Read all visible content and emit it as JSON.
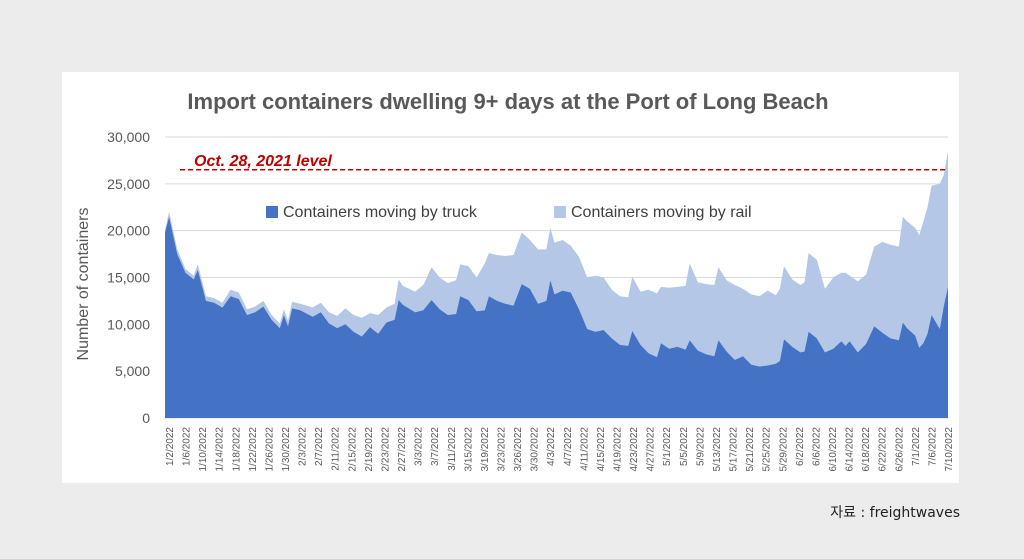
{
  "source_label": "자료 : freightwaves",
  "chart_data": {
    "type": "area",
    "stacked": true,
    "title": "Import containers dwelling 9+ days at the Port of Long Beach",
    "xlabel": "",
    "ylabel": "Number of containers",
    "ylim": [
      0,
      30000
    ],
    "yticks": [
      0,
      5000,
      10000,
      15000,
      20000,
      25000,
      30000
    ],
    "ytick_labels": [
      "0",
      "5,000",
      "10,000",
      "15,000",
      "20,000",
      "25,000",
      "30,000"
    ],
    "grid": "horizontal",
    "legend_position": "top-center",
    "x_start": "2022-01-02",
    "x_end": "2022-07-12",
    "xtick_labels": [
      "1/2/2022",
      "1/6/2022",
      "1/10/2022",
      "1/14/2022",
      "1/18/2022",
      "1/22/2022",
      "1/26/2022",
      "1/30/2022",
      "2/3/2022",
      "2/7/2022",
      "2/11/2022",
      "2/15/2022",
      "2/19/2022",
      "2/23/2022",
      "2/27/2022",
      "3/3/2022",
      "3/7/2022",
      "3/11/2022",
      "3/15/2022",
      "3/19/2022",
      "3/23/2022",
      "3/26/2022",
      "3/30/2022",
      "4/3/2022",
      "4/7/2022",
      "4/11/2022",
      "4/15/2022",
      "4/19/2022",
      "4/23/2022",
      "4/27/2022",
      "5/1/2022",
      "5/5/2022",
      "5/9/2022",
      "5/13/2022",
      "5/17/2022",
      "5/21/2022",
      "5/25/2022",
      "5/29/2022",
      "6/2/2022",
      "6/6/2022",
      "6/10/2022",
      "6/14/2022",
      "6/18/2022",
      "6/22/2022",
      "6/26/2022",
      "7/1/2022",
      "7/6/2022",
      "7/10/2022"
    ],
    "reference_line": {
      "label": "Oct. 28, 2021 level",
      "value": 26500,
      "color": "#c00000"
    },
    "series": [
      {
        "name": "Containers moving by truck",
        "color": "#4472c4",
        "points": [
          [
            "2022-01-02",
            19800
          ],
          [
            "2022-01-03",
            21500
          ],
          [
            "2022-01-05",
            17500
          ],
          [
            "2022-01-07",
            15500
          ],
          [
            "2022-01-09",
            14800
          ],
          [
            "2022-01-10",
            15800
          ],
          [
            "2022-01-12",
            12500
          ],
          [
            "2022-01-14",
            12300
          ],
          [
            "2022-01-16",
            11800
          ],
          [
            "2022-01-18",
            13000
          ],
          [
            "2022-01-20",
            12700
          ],
          [
            "2022-01-22",
            11000
          ],
          [
            "2022-01-24",
            11300
          ],
          [
            "2022-01-26",
            11900
          ],
          [
            "2022-01-28",
            10500
          ],
          [
            "2022-01-30",
            9600
          ],
          [
            "2022-01-31",
            11000
          ],
          [
            "2022-02-01",
            9800
          ],
          [
            "2022-02-02",
            11700
          ],
          [
            "2022-02-04",
            11500
          ],
          [
            "2022-02-07",
            10800
          ],
          [
            "2022-02-09",
            11300
          ],
          [
            "2022-02-11",
            10100
          ],
          [
            "2022-02-13",
            9600
          ],
          [
            "2022-02-15",
            10000
          ],
          [
            "2022-02-17",
            9200
          ],
          [
            "2022-02-19",
            8700
          ],
          [
            "2022-02-21",
            9700
          ],
          [
            "2022-02-23",
            9000
          ],
          [
            "2022-02-25",
            10200
          ],
          [
            "2022-02-27",
            10500
          ],
          [
            "2022-02-28",
            12600
          ],
          [
            "2022-03-01",
            12100
          ],
          [
            "2022-03-04",
            11300
          ],
          [
            "2022-03-06",
            11500
          ],
          [
            "2022-03-08",
            12600
          ],
          [
            "2022-03-10",
            11600
          ],
          [
            "2022-03-12",
            11000
          ],
          [
            "2022-03-14",
            11100
          ],
          [
            "2022-03-15",
            13000
          ],
          [
            "2022-03-17",
            12600
          ],
          [
            "2022-03-19",
            11400
          ],
          [
            "2022-03-21",
            11500
          ],
          [
            "2022-03-22",
            13000
          ],
          [
            "2022-03-24",
            12500
          ],
          [
            "2022-03-26",
            12200
          ],
          [
            "2022-03-28",
            12000
          ],
          [
            "2022-03-30",
            14300
          ],
          [
            "2022-04-01",
            13800
          ],
          [
            "2022-04-03",
            12200
          ],
          [
            "2022-04-05",
            12500
          ],
          [
            "2022-04-06",
            14700
          ],
          [
            "2022-04-07",
            13200
          ],
          [
            "2022-04-09",
            13600
          ],
          [
            "2022-04-11",
            13400
          ],
          [
            "2022-04-13",
            11600
          ],
          [
            "2022-04-15",
            9500
          ],
          [
            "2022-04-17",
            9200
          ],
          [
            "2022-04-19",
            9400
          ],
          [
            "2022-04-21",
            8500
          ],
          [
            "2022-04-23",
            7800
          ],
          [
            "2022-04-25",
            7700
          ],
          [
            "2022-04-26",
            9300
          ],
          [
            "2022-04-28",
            7800
          ],
          [
            "2022-04-30",
            6900
          ],
          [
            "2022-05-02",
            6500
          ],
          [
            "2022-05-03",
            8000
          ],
          [
            "2022-05-05",
            7400
          ],
          [
            "2022-05-07",
            7600
          ],
          [
            "2022-05-09",
            7300
          ],
          [
            "2022-05-10",
            8300
          ],
          [
            "2022-05-12",
            7200
          ],
          [
            "2022-05-14",
            6800
          ],
          [
            "2022-05-16",
            6600
          ],
          [
            "2022-05-17",
            8300
          ],
          [
            "2022-05-19",
            7100
          ],
          [
            "2022-05-21",
            6200
          ],
          [
            "2022-05-23",
            6600
          ],
          [
            "2022-05-25",
            5700
          ],
          [
            "2022-05-27",
            5500
          ],
          [
            "2022-05-29",
            5600
          ],
          [
            "2022-05-31",
            5800
          ],
          [
            "2022-06-01",
            6100
          ],
          [
            "2022-06-02",
            8400
          ],
          [
            "2022-06-04",
            7600
          ],
          [
            "2022-06-06",
            7000
          ],
          [
            "2022-06-07",
            7100
          ],
          [
            "2022-06-08",
            9200
          ],
          [
            "2022-06-10",
            8500
          ],
          [
            "2022-06-12",
            7000
          ],
          [
            "2022-06-14",
            7400
          ],
          [
            "2022-06-16",
            8200
          ],
          [
            "2022-06-17",
            7700
          ],
          [
            "2022-06-18",
            8200
          ],
          [
            "2022-06-20",
            7000
          ],
          [
            "2022-06-22",
            7900
          ],
          [
            "2022-06-24",
            9800
          ],
          [
            "2022-06-26",
            9100
          ],
          [
            "2022-06-28",
            8500
          ],
          [
            "2022-06-30",
            8300
          ],
          [
            "2022-07-01",
            10200
          ],
          [
            "2022-07-02",
            9600
          ],
          [
            "2022-07-04",
            8800
          ],
          [
            "2022-07-05",
            7500
          ],
          [
            "2022-07-06",
            8000
          ],
          [
            "2022-07-07",
            9000
          ],
          [
            "2022-07-08",
            11000
          ],
          [
            "2022-07-10",
            9500
          ],
          [
            "2022-07-11",
            12000
          ],
          [
            "2022-07-12",
            14000
          ]
        ]
      },
      {
        "name": "Containers moving by rail",
        "color": "#b4c7e7",
        "points": [
          [
            "2022-01-02",
            300
          ],
          [
            "2022-01-03",
            500
          ],
          [
            "2022-01-05",
            500
          ],
          [
            "2022-01-07",
            400
          ],
          [
            "2022-01-09",
            400
          ],
          [
            "2022-01-10",
            600
          ],
          [
            "2022-01-12",
            500
          ],
          [
            "2022-01-14",
            500
          ],
          [
            "2022-01-16",
            500
          ],
          [
            "2022-01-18",
            700
          ],
          [
            "2022-01-20",
            700
          ],
          [
            "2022-01-22",
            600
          ],
          [
            "2022-01-24",
            600
          ],
          [
            "2022-01-26",
            600
          ],
          [
            "2022-01-28",
            500
          ],
          [
            "2022-01-30",
            500
          ],
          [
            "2022-01-31",
            600
          ],
          [
            "2022-02-01",
            600
          ],
          [
            "2022-02-02",
            700
          ],
          [
            "2022-02-04",
            700
          ],
          [
            "2022-02-07",
            1000
          ],
          [
            "2022-02-09",
            1000
          ],
          [
            "2022-02-11",
            1200
          ],
          [
            "2022-02-13",
            1300
          ],
          [
            "2022-02-15",
            1700
          ],
          [
            "2022-02-17",
            1800
          ],
          [
            "2022-02-19",
            2000
          ],
          [
            "2022-02-21",
            1500
          ],
          [
            "2022-02-23",
            2000
          ],
          [
            "2022-02-25",
            1600
          ],
          [
            "2022-02-27",
            1700
          ],
          [
            "2022-02-28",
            2200
          ],
          [
            "2022-03-01",
            2000
          ],
          [
            "2022-03-04",
            2200
          ],
          [
            "2022-03-06",
            2700
          ],
          [
            "2022-03-08",
            3500
          ],
          [
            "2022-03-10",
            3400
          ],
          [
            "2022-03-12",
            3400
          ],
          [
            "2022-03-14",
            3600
          ],
          [
            "2022-03-15",
            3400
          ],
          [
            "2022-03-17",
            3600
          ],
          [
            "2022-03-19",
            3600
          ],
          [
            "2022-03-21",
            5000
          ],
          [
            "2022-03-22",
            4600
          ],
          [
            "2022-03-24",
            4900
          ],
          [
            "2022-03-26",
            5100
          ],
          [
            "2022-03-28",
            5400
          ],
          [
            "2022-03-30",
            5500
          ],
          [
            "2022-04-01",
            5200
          ],
          [
            "2022-04-03",
            5800
          ],
          [
            "2022-04-05",
            5500
          ],
          [
            "2022-04-06",
            5600
          ],
          [
            "2022-04-07",
            5500
          ],
          [
            "2022-04-09",
            5400
          ],
          [
            "2022-04-11",
            5000
          ],
          [
            "2022-04-13",
            5600
          ],
          [
            "2022-04-15",
            5500
          ],
          [
            "2022-04-17",
            6000
          ],
          [
            "2022-04-19",
            5600
          ],
          [
            "2022-04-21",
            5200
          ],
          [
            "2022-04-23",
            5200
          ],
          [
            "2022-04-25",
            5200
          ],
          [
            "2022-04-26",
            5800
          ],
          [
            "2022-04-28",
            5700
          ],
          [
            "2022-04-30",
            6800
          ],
          [
            "2022-05-02",
            6800
          ],
          [
            "2022-05-03",
            6000
          ],
          [
            "2022-05-05",
            6500
          ],
          [
            "2022-05-07",
            6400
          ],
          [
            "2022-05-09",
            6800
          ],
          [
            "2022-05-10",
            8200
          ],
          [
            "2022-05-12",
            7300
          ],
          [
            "2022-05-14",
            7500
          ],
          [
            "2022-05-16",
            7600
          ],
          [
            "2022-05-17",
            7800
          ],
          [
            "2022-05-19",
            7600
          ],
          [
            "2022-05-21",
            8000
          ],
          [
            "2022-05-23",
            7200
          ],
          [
            "2022-05-25",
            7500
          ],
          [
            "2022-05-27",
            7500
          ],
          [
            "2022-05-29",
            8000
          ],
          [
            "2022-05-31",
            7300
          ],
          [
            "2022-06-01",
            7700
          ],
          [
            "2022-06-02",
            7800
          ],
          [
            "2022-06-04",
            7200
          ],
          [
            "2022-06-06",
            7200
          ],
          [
            "2022-06-07",
            7400
          ],
          [
            "2022-06-08",
            8400
          ],
          [
            "2022-06-10",
            8400
          ],
          [
            "2022-06-12",
            6800
          ],
          [
            "2022-06-14",
            7600
          ],
          [
            "2022-06-16",
            7300
          ],
          [
            "2022-06-17",
            7800
          ],
          [
            "2022-06-18",
            7000
          ],
          [
            "2022-06-20",
            7600
          ],
          [
            "2022-06-22",
            7400
          ],
          [
            "2022-06-24",
            8500
          ],
          [
            "2022-06-26",
            9700
          ],
          [
            "2022-06-28",
            10000
          ],
          [
            "2022-06-30",
            10000
          ],
          [
            "2022-07-01",
            11300
          ],
          [
            "2022-07-02",
            11400
          ],
          [
            "2022-07-04",
            11500
          ],
          [
            "2022-07-05",
            12000
          ],
          [
            "2022-07-06",
            13000
          ],
          [
            "2022-07-07",
            13500
          ],
          [
            "2022-07-08",
            13800
          ],
          [
            "2022-07-10",
            15500
          ],
          [
            "2022-07-11",
            14000
          ],
          [
            "2022-07-12",
            14500
          ]
        ]
      }
    ]
  }
}
